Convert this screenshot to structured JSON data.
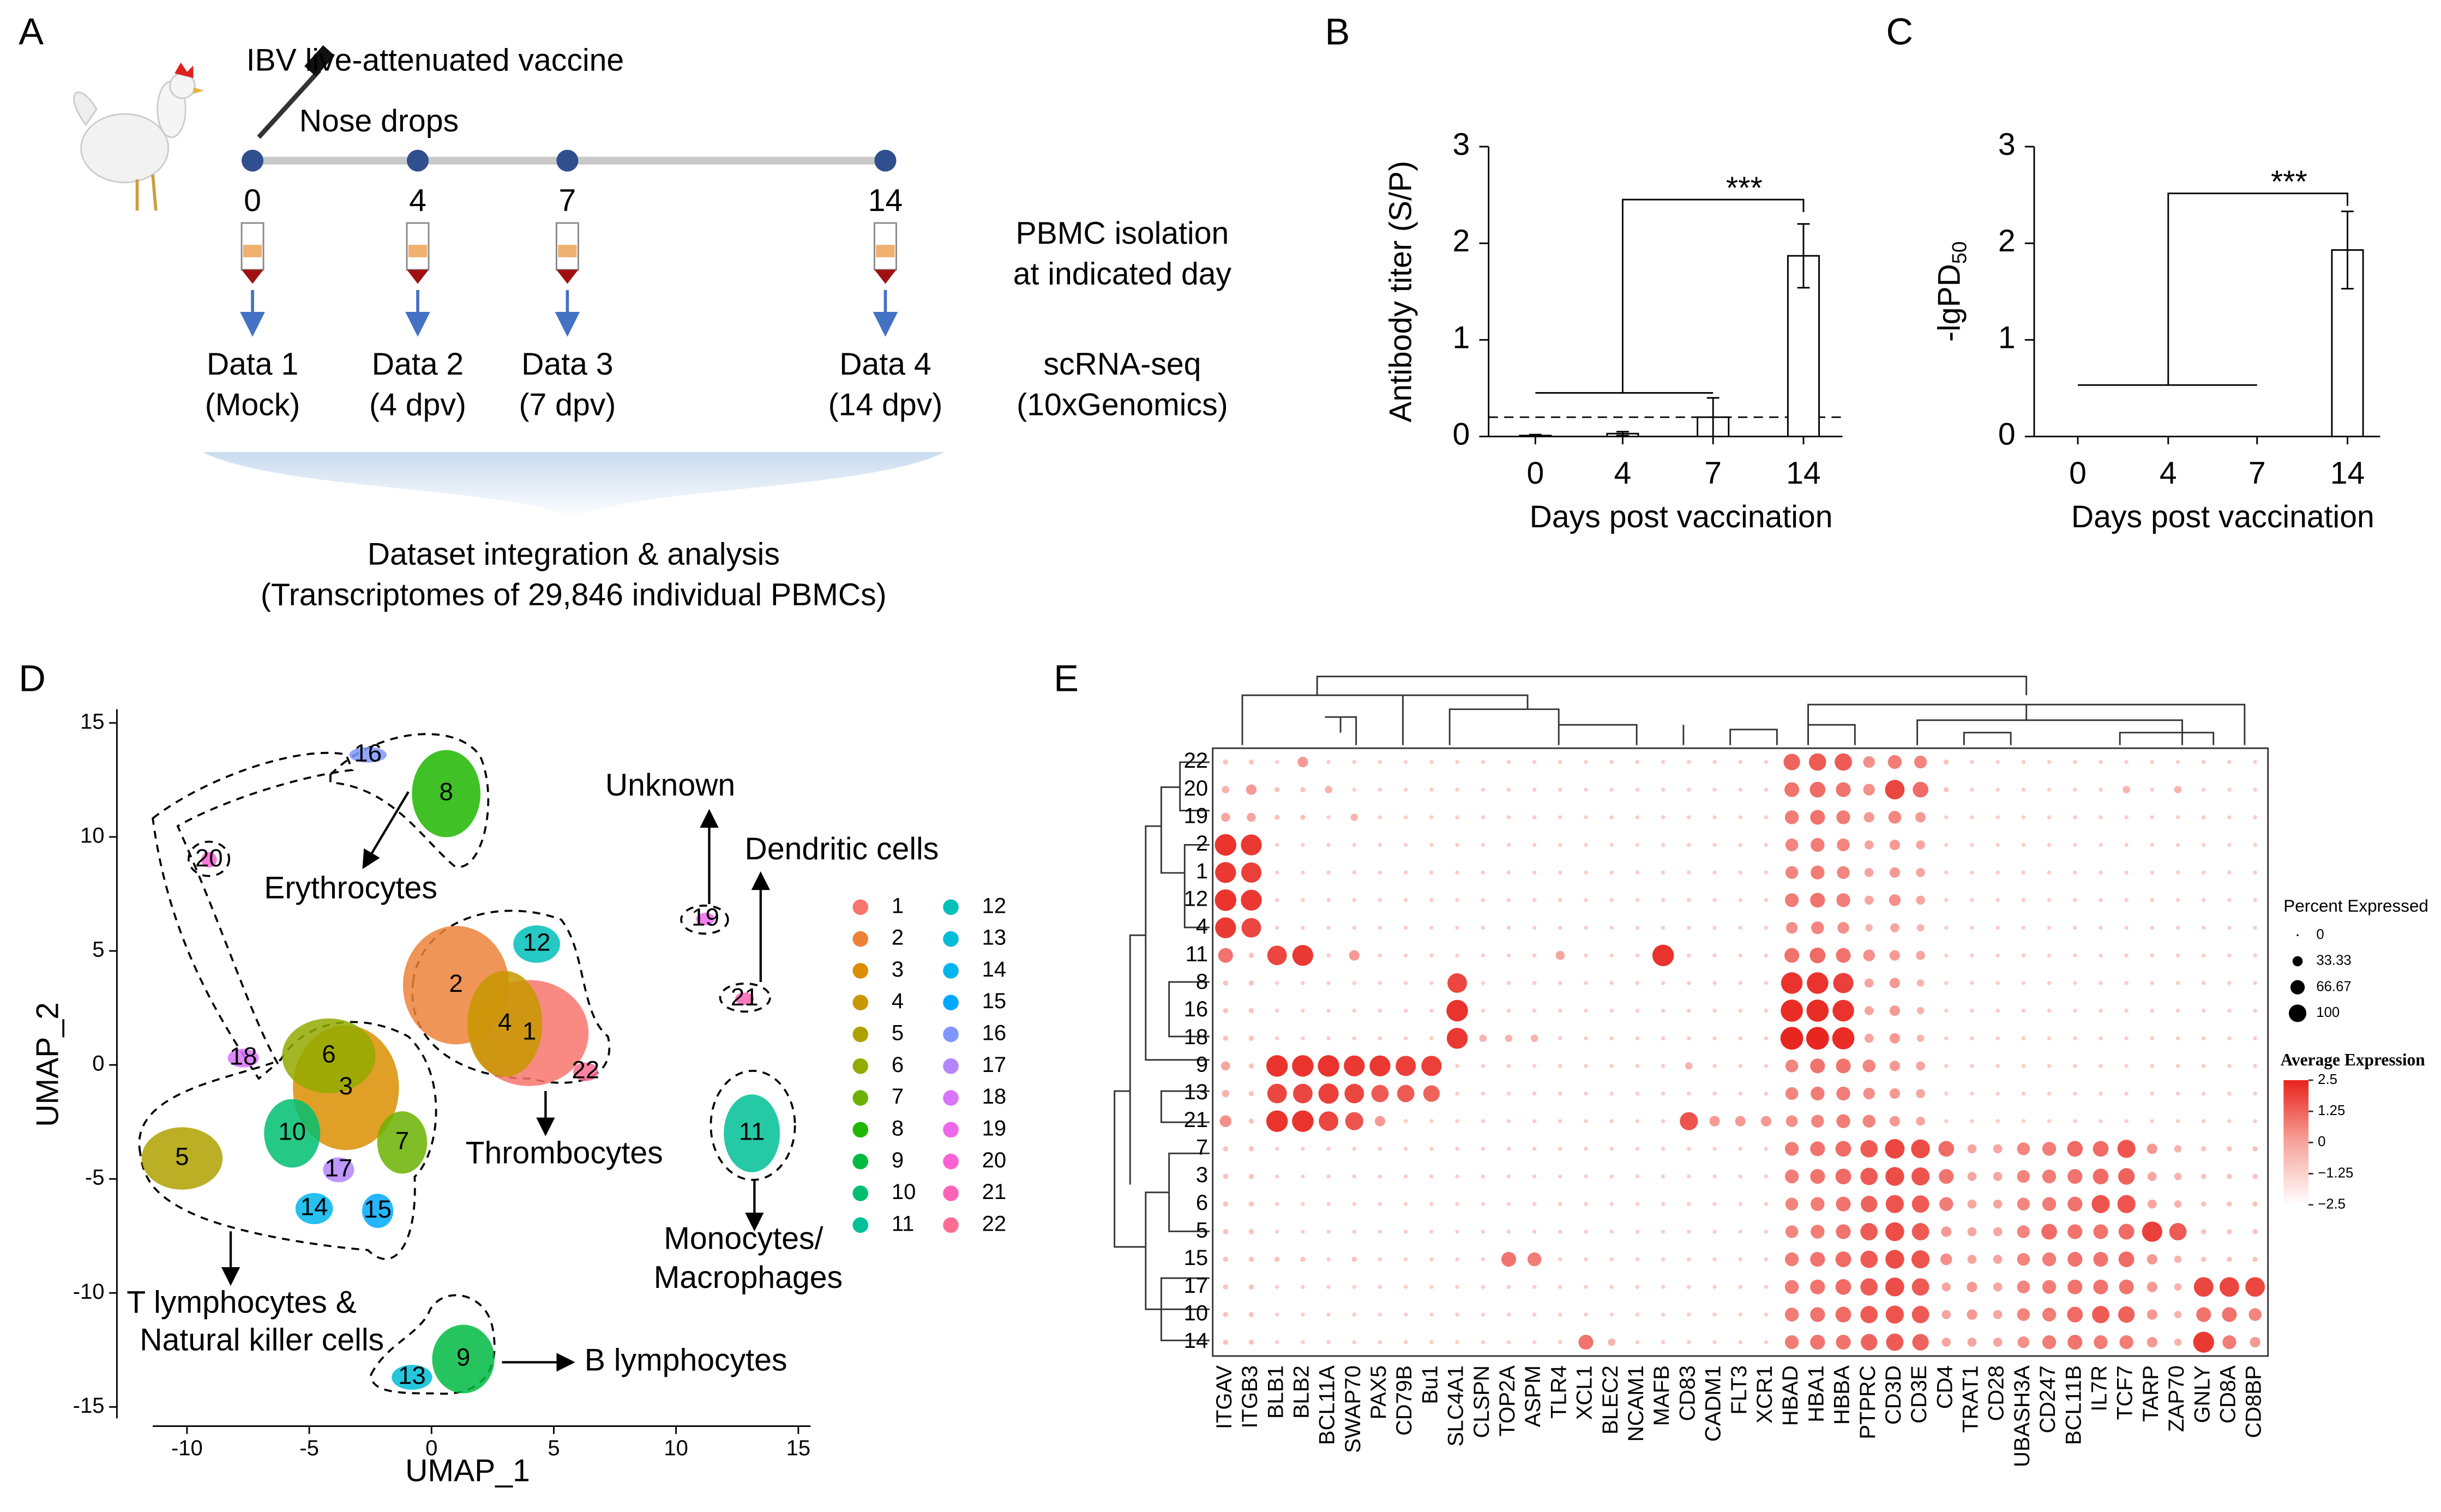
{
  "panel_labels": [
    "A",
    "B",
    "C",
    "D",
    "E"
  ],
  "panel_a": {
    "vaccine": "IBV live-attenuated vaccine",
    "route": "Nose drops",
    "days": [
      0,
      4,
      7,
      14
    ],
    "datasets": [
      {
        "name": "Data 1",
        "label": "(Mock)"
      },
      {
        "name": "Data 2",
        "label": "(4 dpv)"
      },
      {
        "name": "Data 3",
        "label": "(7 dpv)"
      },
      {
        "name": "Data 4",
        "label": "(14 dpv)"
      }
    ],
    "pbmc": [
      "PBMC isolation",
      "at indicated day"
    ],
    "seq": [
      "scRNA-seq",
      "(10xGenomics)"
    ],
    "integration": [
      "Dataset integration & analysis",
      "(Transcriptomes of 29,846 individual PBMCs)"
    ]
  },
  "chart_data": [
    {
      "type": "bar",
      "ylabel": "Antibody titer (S/P)",
      "xlabel": "Days post vaccination",
      "categories": [
        "0",
        "4",
        "7",
        "14"
      ],
      "values": [
        0.01,
        0.03,
        0.2,
        1.87
      ],
      "errors": [
        0.01,
        0.02,
        0.2,
        0.33
      ],
      "threshold": 0.2,
      "annotation": "***",
      "ylim": [
        0,
        3
      ],
      "yticks": [
        0,
        1,
        2,
        3
      ],
      "color": "#ffffff"
    },
    {
      "type": "bar",
      "ylabel": "-lgPD",
      "ylabel_sub": "50",
      "xlabel": "Days post vaccination",
      "categories": [
        "0",
        "4",
        "7",
        "14"
      ],
      "values": [
        0,
        0,
        0,
        1.93
      ],
      "errors": [
        0,
        0,
        0,
        0.4
      ],
      "annotation": "***",
      "ylim": [
        0,
        3
      ],
      "yticks": [
        0,
        1,
        2,
        3
      ],
      "color": "#ffffff"
    },
    {
      "type": "scatter",
      "xlabel": "UMAP_1",
      "ylabel": "UMAP_2",
      "xlim": [
        -11.4,
        15.5
      ],
      "ylim": [
        -15.5,
        15.6
      ],
      "xticks": [
        -10,
        -5,
        0,
        5,
        10,
        15
      ],
      "yticks": [
        -15,
        -10,
        -5,
        0,
        5,
        10,
        15
      ],
      "clusters": [
        {
          "label": "1",
          "x": 4.0,
          "y": 1.4,
          "color": "#F8766D"
        },
        {
          "label": "2",
          "x": 1.0,
          "y": 3.5,
          "color": "#EC8239"
        },
        {
          "label": "3",
          "x": -3.5,
          "y": -1.0,
          "color": "#DB8E00"
        },
        {
          "label": "4",
          "x": 3.0,
          "y": 1.8,
          "color": "#C79800"
        },
        {
          "label": "5",
          "x": -10.2,
          "y": -4.1,
          "color": "#AFA100"
        },
        {
          "label": "6",
          "x": -4.2,
          "y": 0.4,
          "color": "#93AA00"
        },
        {
          "label": "7",
          "x": -1.2,
          "y": -3.4,
          "color": "#6BB100"
        },
        {
          "label": "8",
          "x": 0.6,
          "y": 11.9,
          "color": "#1FB700"
        },
        {
          "label": "9",
          "x": 1.3,
          "y": -12.9,
          "color": "#00BA42"
        },
        {
          "label": "10",
          "x": -5.7,
          "y": -3.0,
          "color": "#00BE70"
        },
        {
          "label": "11",
          "x": 13.1,
          "y": -3.0,
          "color": "#00C097"
        },
        {
          "label": "12",
          "x": 4.3,
          "y": 5.3,
          "color": "#00C0B8"
        },
        {
          "label": "13",
          "x": -0.8,
          "y": -13.7,
          "color": "#00BCD6"
        },
        {
          "label": "14",
          "x": -4.8,
          "y": -6.3,
          "color": "#00B5EE"
        },
        {
          "label": "15",
          "x": -2.2,
          "y": -6.4,
          "color": "#00A9FF"
        },
        {
          "label": "16",
          "x": -2.6,
          "y": 13.6,
          "color": "#7F96FF"
        },
        {
          "label": "17",
          "x": -3.8,
          "y": -4.6,
          "color": "#B385FF"
        },
        {
          "label": "18",
          "x": -7.7,
          "y": 0.3,
          "color": "#D874FD"
        },
        {
          "label": "19",
          "x": 11.2,
          "y": 6.4,
          "color": "#EF67EB"
        },
        {
          "label": "20",
          "x": -9.1,
          "y": 9.0,
          "color": "#FD61D3"
        },
        {
          "label": "21",
          "x": 12.8,
          "y": 2.9,
          "color": "#FF63B6"
        },
        {
          "label": "22",
          "x": 6.3,
          "y": -0.3,
          "color": "#FF6C92"
        }
      ],
      "annotations": [
        "Unknown",
        "Dendritic cells",
        "Erythrocytes",
        "Thrombocytes",
        "Monocytes/",
        "Macrophages",
        "T lymphocytes &",
        "Natural killer cells",
        "B lymphocytes"
      ]
    },
    {
      "type": "dotplot",
      "size_title": "Percent Expressed",
      "size_ticks": [
        0,
        33.33,
        66.67,
        100
      ],
      "color_title": "Average Expression",
      "color_ticks": [
        2.5,
        1.25,
        0,
        {
          "value": -1.25,
          "label": "−1.25"
        },
        {
          "value": -2.5,
          "label": "−2.5"
        }
      ],
      "rows": [
        "22",
        "20",
        "19",
        "2",
        "1",
        "12",
        "4",
        "11",
        "8",
        "16",
        "18",
        "9",
        "13",
        "21",
        "7",
        "3",
        "6",
        "5",
        "15",
        "17",
        "10",
        "14"
      ],
      "genes": [
        "ITGAV",
        "ITGB3",
        "BLB1",
        "BLB2",
        "BCL11A",
        "SWAP70",
        "PAX5",
        "CD79B",
        "Bu1",
        "SLC4A1",
        "CLSPN",
        "TOP2A",
        "ASPM",
        "TLR4",
        "XCL1",
        "BLEC2",
        "NCAM1",
        "MAFB",
        "CD83",
        "CADM1",
        "FLT3",
        "XCR1",
        "HBAD",
        "HBA1",
        "HBBA",
        "PTPRC",
        "CD3D",
        "CD3E",
        "CD4",
        "TRAT1",
        "CD28",
        "UBASH3A",
        "CD247",
        "BCL11B",
        "IL7R",
        "TCF7",
        "TARP",
        "ZAP70",
        "GNLY",
        "CD8A",
        "CD8BP"
      ],
      "values": [
        [
          5,
          5,
          3,
          20,
          3,
          3,
          3,
          3,
          3,
          3,
          3,
          3,
          3,
          3,
          3,
          3,
          3,
          3,
          3,
          3,
          3,
          3,
          50,
          55,
          55,
          25,
          35,
          30,
          5,
          3,
          3,
          3,
          3,
          3,
          3,
          3,
          3,
          3,
          3,
          3,
          3
        ],
        [
          10,
          20,
          5,
          5,
          10,
          3,
          3,
          3,
          3,
          3,
          3,
          3,
          3,
          3,
          3,
          3,
          3,
          3,
          3,
          3,
          3,
          3,
          40,
          45,
          40,
          25,
          70,
          45,
          5,
          3,
          3,
          3,
          3,
          3,
          3,
          10,
          3,
          10,
          3,
          3,
          3
        ],
        [
          15,
          15,
          5,
          5,
          3,
          10,
          3,
          3,
          3,
          3,
          3,
          3,
          3,
          3,
          3,
          3,
          3,
          3,
          3,
          3,
          3,
          3,
          35,
          40,
          35,
          20,
          30,
          20,
          3,
          3,
          3,
          3,
          3,
          3,
          3,
          3,
          3,
          3,
          3,
          3,
          3
        ],
        [
          85,
          80,
          3,
          3,
          3,
          3,
          3,
          3,
          3,
          3,
          3,
          3,
          3,
          3,
          3,
          3,
          3,
          3,
          3,
          3,
          3,
          3,
          30,
          35,
          30,
          15,
          20,
          15,
          3,
          3,
          3,
          3,
          3,
          3,
          3,
          3,
          3,
          3,
          3,
          3,
          3
        ],
        [
          80,
          75,
          3,
          3,
          3,
          3,
          3,
          3,
          3,
          3,
          3,
          3,
          3,
          3,
          3,
          3,
          3,
          3,
          3,
          3,
          3,
          3,
          30,
          35,
          30,
          15,
          20,
          15,
          3,
          3,
          3,
          3,
          3,
          3,
          3,
          3,
          3,
          3,
          3,
          3,
          3
        ],
        [
          85,
          80,
          3,
          3,
          3,
          3,
          3,
          3,
          3,
          3,
          3,
          3,
          3,
          3,
          3,
          3,
          3,
          3,
          3,
          3,
          3,
          3,
          35,
          40,
          35,
          15,
          25,
          15,
          3,
          3,
          3,
          3,
          3,
          3,
          3,
          3,
          3,
          3,
          3,
          3,
          3
        ],
        [
          80,
          70,
          3,
          3,
          3,
          3,
          3,
          3,
          3,
          3,
          3,
          3,
          3,
          3,
          3,
          3,
          3,
          3,
          3,
          3,
          3,
          3,
          25,
          30,
          25,
          10,
          15,
          10,
          3,
          3,
          3,
          3,
          3,
          3,
          3,
          3,
          3,
          3,
          3,
          3,
          3
        ],
        [
          40,
          5,
          70,
          80,
          3,
          20,
          3,
          3,
          3,
          3,
          3,
          3,
          3,
          15,
          3,
          3,
          3,
          85,
          3,
          3,
          3,
          3,
          40,
          45,
          40,
          25,
          20,
          15,
          3,
          3,
          3,
          3,
          3,
          3,
          3,
          3,
          3,
          3,
          3,
          3,
          3
        ],
        [
          5,
          5,
          3,
          3,
          3,
          3,
          3,
          3,
          3,
          70,
          3,
          3,
          3,
          3,
          3,
          3,
          3,
          3,
          3,
          3,
          3,
          3,
          85,
          85,
          75,
          15,
          20,
          10,
          3,
          3,
          3,
          3,
          3,
          3,
          3,
          3,
          3,
          3,
          3,
          3,
          3
        ],
        [
          5,
          5,
          3,
          3,
          3,
          3,
          3,
          3,
          3,
          85,
          3,
          3,
          3,
          3,
          3,
          3,
          3,
          3,
          3,
          3,
          3,
          3,
          90,
          90,
          85,
          15,
          20,
          10,
          3,
          3,
          3,
          3,
          3,
          3,
          3,
          3,
          3,
          3,
          3,
          3,
          3
        ],
        [
          5,
          5,
          3,
          3,
          3,
          3,
          3,
          3,
          3,
          80,
          10,
          10,
          10,
          3,
          3,
          3,
          3,
          3,
          3,
          3,
          3,
          3,
          95,
          95,
          90,
          15,
          20,
          10,
          3,
          3,
          3,
          3,
          3,
          3,
          3,
          3,
          3,
          3,
          3,
          3,
          3
        ],
        [
          15,
          5,
          85,
          85,
          85,
          80,
          80,
          75,
          75,
          3,
          3,
          3,
          3,
          3,
          3,
          3,
          3,
          3,
          10,
          3,
          3,
          3,
          30,
          40,
          40,
          30,
          20,
          15,
          3,
          3,
          3,
          3,
          3,
          3,
          3,
          3,
          3,
          3,
          3,
          3,
          3
        ],
        [
          10,
          5,
          70,
          70,
          75,
          70,
          55,
          55,
          50,
          3,
          3,
          3,
          3,
          3,
          3,
          3,
          3,
          3,
          3,
          3,
          3,
          3,
          30,
          35,
          35,
          25,
          20,
          15,
          3,
          3,
          3,
          3,
          3,
          3,
          3,
          3,
          3,
          3,
          3,
          3,
          3
        ],
        [
          25,
          5,
          85,
          85,
          70,
          60,
          20,
          3,
          3,
          3,
          3,
          3,
          3,
          3,
          3,
          3,
          3,
          3,
          60,
          20,
          20,
          20,
          25,
          30,
          35,
          30,
          20,
          15,
          3,
          3,
          3,
          3,
          3,
          3,
          3,
          3,
          3,
          3,
          3,
          3,
          3
        ],
        [
          5,
          5,
          3,
          3,
          3,
          3,
          3,
          3,
          3,
          3,
          3,
          3,
          3,
          3,
          3,
          3,
          3,
          3,
          3,
          3,
          3,
          3,
          35,
          40,
          45,
          55,
          70,
          65,
          45,
          15,
          15,
          30,
          35,
          45,
          45,
          60,
          20,
          10,
          5,
          5,
          5
        ],
        [
          5,
          5,
          3,
          3,
          3,
          3,
          3,
          3,
          3,
          3,
          3,
          3,
          3,
          3,
          3,
          3,
          3,
          3,
          3,
          3,
          3,
          3,
          35,
          40,
          45,
          55,
          65,
          60,
          40,
          15,
          15,
          30,
          35,
          40,
          45,
          50,
          15,
          10,
          5,
          5,
          5
        ],
        [
          5,
          5,
          3,
          3,
          3,
          3,
          3,
          3,
          3,
          3,
          3,
          3,
          3,
          3,
          3,
          3,
          3,
          3,
          3,
          3,
          3,
          3,
          30,
          35,
          40,
          50,
          60,
          55,
          35,
          15,
          15,
          30,
          35,
          40,
          60,
          60,
          15,
          10,
          5,
          5,
          5
        ],
        [
          5,
          5,
          3,
          3,
          3,
          3,
          3,
          3,
          3,
          3,
          3,
          3,
          3,
          3,
          3,
          3,
          3,
          3,
          3,
          3,
          3,
          3,
          30,
          35,
          40,
          55,
          65,
          55,
          20,
          15,
          15,
          30,
          45,
          40,
          40,
          45,
          75,
          55,
          5,
          5,
          5
        ],
        [
          5,
          5,
          5,
          5,
          3,
          5,
          3,
          3,
          3,
          3,
          3,
          40,
          35,
          3,
          3,
          3,
          3,
          3,
          3,
          3,
          3,
          3,
          35,
          40,
          45,
          55,
          65,
          60,
          25,
          15,
          15,
          30,
          35,
          40,
          40,
          45,
          20,
          10,
          5,
          5,
          5
        ],
        [
          5,
          5,
          3,
          3,
          3,
          3,
          3,
          3,
          3,
          3,
          3,
          3,
          3,
          3,
          3,
          3,
          3,
          3,
          3,
          3,
          3,
          3,
          35,
          40,
          45,
          55,
          65,
          55,
          15,
          20,
          15,
          30,
          35,
          40,
          40,
          40,
          20,
          10,
          70,
          70,
          70
        ],
        [
          5,
          5,
          3,
          3,
          3,
          3,
          3,
          3,
          3,
          3,
          3,
          3,
          3,
          3,
          3,
          3,
          3,
          3,
          3,
          3,
          3,
          3,
          35,
          40,
          45,
          55,
          60,
          55,
          15,
          20,
          15,
          30,
          35,
          45,
          55,
          50,
          20,
          10,
          40,
          40,
          30
        ],
        [
          5,
          5,
          3,
          3,
          3,
          3,
          3,
          3,
          3,
          3,
          3,
          3,
          3,
          3,
          40,
          10,
          3,
          3,
          3,
          3,
          3,
          3,
          35,
          40,
          40,
          50,
          55,
          50,
          15,
          15,
          15,
          25,
          35,
          40,
          35,
          35,
          20,
          10,
          80,
          35,
          20
        ]
      ]
    }
  ]
}
